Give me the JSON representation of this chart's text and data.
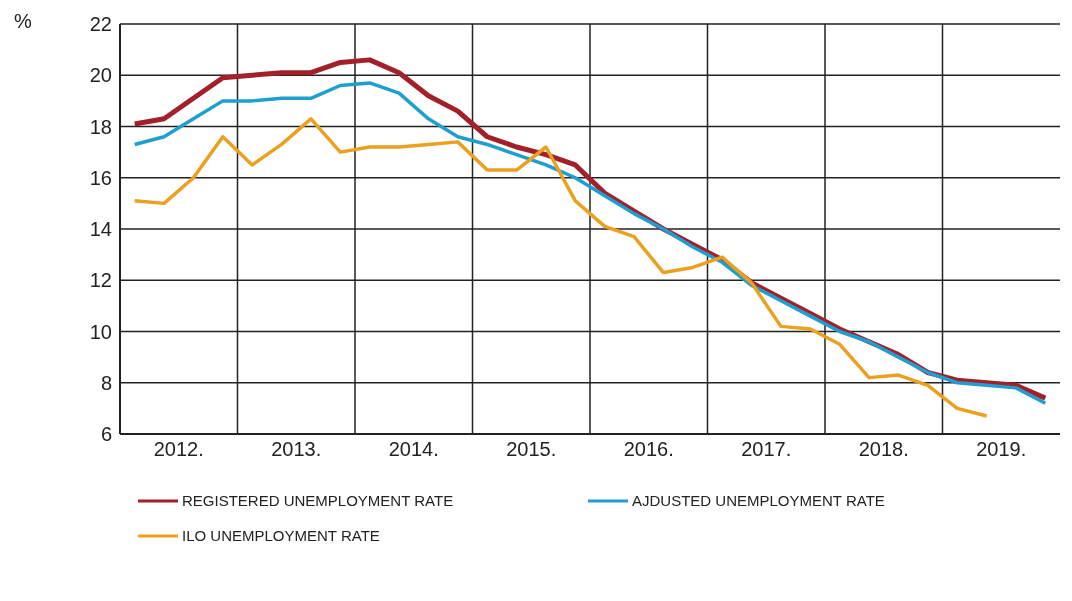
{
  "chart_data": {
    "type": "line",
    "ylabel": "%",
    "x": [
      2012.125,
      2012.375,
      2012.625,
      2012.875,
      2013.125,
      2013.375,
      2013.625,
      2013.875,
      2014.125,
      2014.375,
      2014.625,
      2014.875,
      2015.125,
      2015.375,
      2015.625,
      2015.875,
      2016.125,
      2016.375,
      2016.625,
      2016.875,
      2017.125,
      2017.375,
      2017.625,
      2017.875,
      2018.125,
      2018.375,
      2018.625,
      2018.875,
      2019.125,
      2019.375,
      2019.625,
      2019.875
    ],
    "xlim": [
      2012,
      2020
    ],
    "xticks": [
      {
        "value": 2012,
        "label": null
      },
      {
        "value": 2012.5,
        "label": "2012."
      },
      {
        "value": 2013,
        "label": null
      },
      {
        "value": 2013.5,
        "label": "2013."
      },
      {
        "value": 2014,
        "label": null
      },
      {
        "value": 2014.5,
        "label": "2014."
      },
      {
        "value": 2015,
        "label": null
      },
      {
        "value": 2015.5,
        "label": "2015."
      },
      {
        "value": 2016,
        "label": null
      },
      {
        "value": 2016.5,
        "label": "2016."
      },
      {
        "value": 2017,
        "label": null
      },
      {
        "value": 2017.5,
        "label": "2017."
      },
      {
        "value": 2018,
        "label": null
      },
      {
        "value": 2018.5,
        "label": "2018."
      },
      {
        "value": 2019,
        "label": null
      },
      {
        "value": 2019.5,
        "label": "2019."
      }
    ],
    "ylim": [
      6,
      22
    ],
    "yticks": [
      6,
      8,
      10,
      12,
      14,
      16,
      18,
      20,
      22
    ],
    "grid": true,
    "legend": "bottom",
    "marker": "none",
    "line_style": "solid",
    "series": [
      {
        "name": "REGISTERED UNEMPLOYMENT RATE",
        "color": "#a3202a",
        "values": [
          18.1,
          18.3,
          19.1,
          19.9,
          20.0,
          20.1,
          20.1,
          20.5,
          20.6,
          20.1,
          19.2,
          18.6,
          17.6,
          17.2,
          16.9,
          16.5,
          15.4,
          14.7,
          14.0,
          13.4,
          12.8,
          11.9,
          11.3,
          10.7,
          10.1,
          9.6,
          9.1,
          8.4,
          8.1,
          8.0,
          7.9,
          7.4
        ]
      },
      {
        "name": "AJDUSTED UNEMPLOYMENT RATE",
        "color": "#1e9fd0",
        "values": [
          17.3,
          17.6,
          18.3,
          19.0,
          19.0,
          19.1,
          19.1,
          19.6,
          19.7,
          19.3,
          18.3,
          17.6,
          17.3,
          16.9,
          16.5,
          16.0,
          15.3,
          14.6,
          14.0,
          13.3,
          12.7,
          11.8,
          11.2,
          10.6,
          10.0,
          9.6,
          9.0,
          8.4,
          8.0,
          7.9,
          7.8,
          7.2
        ]
      },
      {
        "name": "ILO UNEMPLOYMENT RATE",
        "color": "#eba020",
        "values": [
          15.1,
          15.0,
          16.0,
          17.6,
          16.5,
          17.3,
          18.3,
          17.0,
          17.2,
          17.2,
          17.3,
          17.4,
          16.3,
          16.3,
          17.2,
          15.1,
          14.1,
          13.7,
          12.3,
          12.5,
          12.9,
          11.9,
          10.2,
          10.1,
          9.5,
          8.2,
          8.3,
          7.9,
          7.0,
          6.7,
          null,
          null
        ]
      }
    ]
  }
}
